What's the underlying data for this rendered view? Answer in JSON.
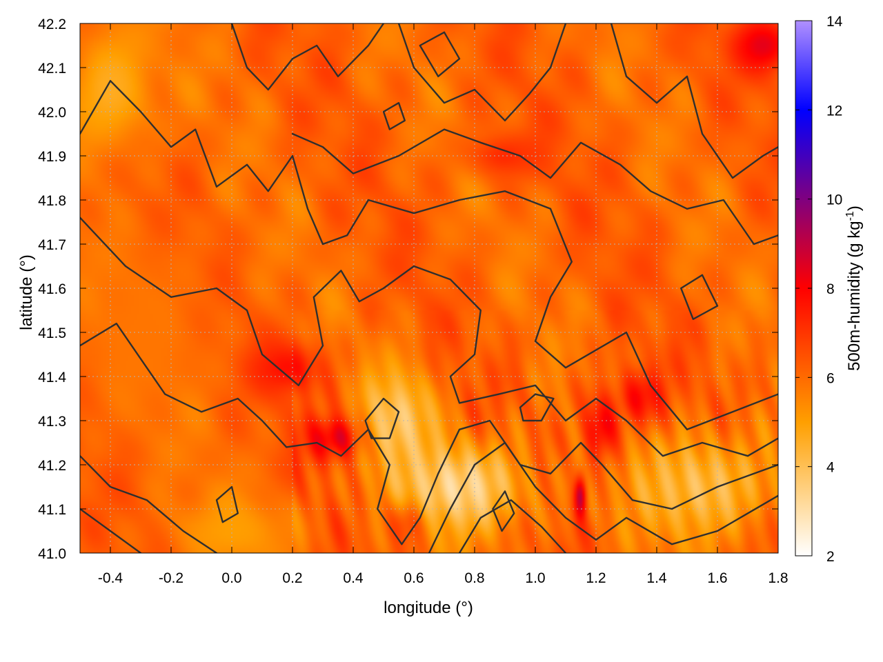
{
  "chart_data": {
    "type": "heatmap",
    "title": "",
    "xlabel": "longitude (°)",
    "ylabel": "latitude (°)",
    "colorbar_label": "500m-humidity (g kg⁻¹)",
    "colorbar_label_parts": {
      "base": "500m-humidity (g kg",
      "exp": "-1",
      "close": ")"
    },
    "xlim": [
      -0.5,
      1.8
    ],
    "ylim": [
      41.0,
      42.2
    ],
    "clim": [
      2,
      14
    ],
    "x_ticks": [
      "-0.4",
      "-0.2",
      "0.0",
      "0.2",
      "0.4",
      "0.6",
      "0.8",
      "1.0",
      "1.2",
      "1.4",
      "1.6",
      "1.8"
    ],
    "x_tick_values": [
      -0.4,
      -0.2,
      0.0,
      0.2,
      0.4,
      0.6,
      0.8,
      1.0,
      1.2,
      1.4,
      1.6,
      1.8
    ],
    "y_ticks": [
      "41.0",
      "41.1",
      "41.2",
      "41.3",
      "41.4",
      "41.5",
      "41.6",
      "41.7",
      "41.8",
      "41.9",
      "42.0",
      "42.1",
      "42.2"
    ],
    "y_tick_values": [
      41.0,
      41.1,
      41.2,
      41.3,
      41.4,
      41.5,
      41.6,
      41.7,
      41.8,
      41.9,
      42.0,
      42.1,
      42.2
    ],
    "colorbar_ticks": [
      "2",
      "4",
      "6",
      "8",
      "10",
      "12",
      "14"
    ],
    "colorbar_tick_values": [
      2,
      4,
      6,
      8,
      10,
      12,
      14
    ],
    "colormap": [
      "#ffffff",
      "#ffd080",
      "#ff9f00",
      "#ff5000",
      "#ff0000",
      "#0000ff",
      "#b090ff"
    ],
    "colormap_stops": [
      2,
      3.5,
      5,
      6.5,
      8,
      12,
      14
    ],
    "grid": true,
    "field_features": [
      {
        "lon": 0.35,
        "lat": 41.26,
        "value": 8.6,
        "sx": 0.1,
        "sy": 0.05
      },
      {
        "lon": 0.18,
        "lat": 41.42,
        "value": 7.8,
        "sx": 0.12,
        "sy": 0.06
      },
      {
        "lon": 1.22,
        "lat": 41.28,
        "value": 8.4,
        "sx": 0.06,
        "sy": 0.08
      },
      {
        "lon": 1.35,
        "lat": 41.35,
        "value": 8.0,
        "sx": 0.08,
        "sy": 0.06
      },
      {
        "lon": 1.15,
        "lat": 41.13,
        "value": 9.5,
        "sx": 0.02,
        "sy": 0.05
      },
      {
        "lon": 0.58,
        "lat": 41.08,
        "value": 8.2,
        "sx": 0.06,
        "sy": 0.05
      },
      {
        "lon": 1.75,
        "lat": 42.15,
        "value": 8.4,
        "sx": 0.1,
        "sy": 0.06
      },
      {
        "lon": 0.9,
        "lat": 41.9,
        "value": 7.2,
        "sx": 0.12,
        "sy": 0.05
      },
      {
        "lon": 0.75,
        "lat": 41.15,
        "value": 3.4,
        "sx": 0.22,
        "sy": 0.1
      },
      {
        "lon": 0.55,
        "lat": 41.3,
        "value": 3.8,
        "sx": 0.12,
        "sy": 0.12
      },
      {
        "lon": 1.55,
        "lat": 41.15,
        "value": 4.2,
        "sx": 0.25,
        "sy": 0.12
      },
      {
        "lon": -0.4,
        "lat": 42.05,
        "value": 4.6,
        "sx": 0.15,
        "sy": 0.15
      },
      {
        "lon": 0.0,
        "lat": 41.05,
        "value": 5.0,
        "sx": 0.2,
        "sy": 0.08
      },
      {
        "lon": -0.3,
        "lat": 41.5,
        "value": 5.8,
        "sx": 0.25,
        "sy": 0.25
      }
    ],
    "contours": [
      [
        [
          -0.5,
          41.95
        ],
        [
          -0.4,
          42.07
        ],
        [
          -0.3,
          42.0
        ],
        [
          -0.2,
          41.92
        ],
        [
          -0.12,
          41.96
        ],
        [
          -0.05,
          41.83
        ],
        [
          0.05,
          41.88
        ],
        [
          0.12,
          41.82
        ],
        [
          0.2,
          41.9
        ],
        [
          0.25,
          41.78
        ],
        [
          0.3,
          41.7
        ],
        [
          0.38,
          41.72
        ],
        [
          0.45,
          41.8
        ],
        [
          0.6,
          41.77
        ],
        [
          0.75,
          41.8
        ],
        [
          0.9,
          41.82
        ],
        [
          1.05,
          41.78
        ],
        [
          1.12,
          41.66
        ],
        [
          1.05,
          41.58
        ],
        [
          1.0,
          41.48
        ],
        [
          1.1,
          41.42
        ],
        [
          1.3,
          41.5
        ],
        [
          1.38,
          41.38
        ],
        [
          1.5,
          41.28
        ],
        [
          1.65,
          41.32
        ],
        [
          1.8,
          41.36
        ]
      ],
      [
        [
          -0.5,
          41.76
        ],
        [
          -0.35,
          41.65
        ],
        [
          -0.2,
          41.58
        ],
        [
          -0.05,
          41.6
        ],
        [
          0.05,
          41.55
        ],
        [
          0.1,
          41.45
        ],
        [
          0.22,
          41.38
        ],
        [
          0.3,
          41.47
        ],
        [
          0.27,
          41.58
        ],
        [
          0.36,
          41.64
        ],
        [
          0.42,
          41.57
        ],
        [
          0.5,
          41.6
        ],
        [
          0.6,
          41.65
        ],
        [
          0.72,
          41.62
        ],
        [
          0.82,
          41.55
        ],
        [
          0.8,
          41.45
        ],
        [
          0.72,
          41.4
        ],
        [
          0.75,
          41.34
        ],
        [
          0.88,
          41.36
        ],
        [
          1.0,
          41.38
        ],
        [
          1.1,
          41.3
        ],
        [
          1.2,
          41.35
        ],
        [
          1.3,
          41.3
        ],
        [
          1.42,
          41.22
        ],
        [
          1.55,
          41.25
        ],
        [
          1.7,
          41.22
        ],
        [
          1.8,
          41.26
        ]
      ],
      [
        [
          -0.5,
          41.47
        ],
        [
          -0.38,
          41.52
        ],
        [
          -0.3,
          41.44
        ],
        [
          -0.22,
          41.36
        ],
        [
          -0.1,
          41.32
        ],
        [
          0.02,
          41.35
        ],
        [
          0.1,
          41.3
        ],
        [
          0.18,
          41.24
        ],
        [
          0.28,
          41.25
        ],
        [
          0.36,
          41.22
        ],
        [
          0.45,
          41.28
        ],
        [
          0.52,
          41.2
        ],
        [
          0.48,
          41.1
        ],
        [
          0.56,
          41.02
        ],
        [
          0.62,
          41.08
        ],
        [
          0.68,
          41.18
        ],
        [
          0.75,
          41.28
        ],
        [
          0.85,
          41.3
        ],
        [
          0.95,
          41.2
        ],
        [
          1.05,
          41.18
        ],
        [
          1.15,
          41.25
        ],
        [
          1.22,
          41.2
        ],
        [
          1.32,
          41.12
        ],
        [
          1.45,
          41.1
        ],
        [
          1.6,
          41.15
        ],
        [
          1.8,
          41.2
        ]
      ],
      [
        [
          -0.5,
          41.22
        ],
        [
          -0.4,
          41.15
        ],
        [
          -0.28,
          41.12
        ],
        [
          -0.16,
          41.05
        ],
        [
          -0.05,
          41.0
        ]
      ],
      [
        [
          -0.5,
          41.1
        ],
        [
          -0.4,
          41.05
        ],
        [
          -0.3,
          41.0
        ]
      ],
      [
        [
          0.65,
          41.0
        ],
        [
          0.72,
          41.1
        ],
        [
          0.8,
          41.2
        ],
        [
          0.9,
          41.25
        ],
        [
          1.0,
          41.15
        ],
        [
          1.1,
          41.08
        ],
        [
          1.2,
          41.03
        ],
        [
          1.3,
          41.08
        ],
        [
          1.45,
          41.02
        ],
        [
          1.6,
          41.05
        ],
        [
          1.8,
          41.13
        ]
      ],
      [
        [
          0.75,
          41.0
        ],
        [
          0.82,
          41.08
        ],
        [
          0.92,
          41.12
        ],
        [
          1.02,
          41.06
        ],
        [
          1.1,
          41.0
        ]
      ],
      [
        [
          0.0,
          42.2
        ],
        [
          0.05,
          42.1
        ],
        [
          0.12,
          42.05
        ],
        [
          0.2,
          42.12
        ],
        [
          0.28,
          42.15
        ],
        [
          0.35,
          42.08
        ],
        [
          0.45,
          42.15
        ],
        [
          0.5,
          42.2
        ]
      ],
      [
        [
          0.55,
          42.2
        ],
        [
          0.6,
          42.1
        ],
        [
          0.7,
          42.02
        ],
        [
          0.8,
          42.05
        ],
        [
          0.9,
          41.98
        ],
        [
          0.98,
          42.04
        ],
        [
          1.05,
          42.1
        ],
        [
          1.1,
          42.2
        ]
      ],
      [
        [
          1.25,
          42.2
        ],
        [
          1.3,
          42.08
        ],
        [
          1.4,
          42.02
        ],
        [
          1.5,
          42.08
        ],
        [
          1.55,
          41.95
        ],
        [
          1.65,
          41.85
        ],
        [
          1.75,
          41.9
        ],
        [
          1.8,
          41.92
        ]
      ],
      [
        [
          0.2,
          41.95
        ],
        [
          0.3,
          41.92
        ],
        [
          0.4,
          41.86
        ],
        [
          0.55,
          41.9
        ],
        [
          0.7,
          41.96
        ],
        [
          0.82,
          41.93
        ],
        [
          0.95,
          41.9
        ],
        [
          1.05,
          41.85
        ],
        [
          1.15,
          41.93
        ],
        [
          1.28,
          41.88
        ],
        [
          1.38,
          41.82
        ],
        [
          1.5,
          41.78
        ],
        [
          1.62,
          41.8
        ],
        [
          1.72,
          41.7
        ],
        [
          1.8,
          41.72
        ]
      ]
    ],
    "closed_contours": [
      [
        [
          0.44,
          41.3
        ],
        [
          0.5,
          41.35
        ],
        [
          0.55,
          41.32
        ],
        [
          0.52,
          41.26
        ],
        [
          0.46,
          41.26
        ]
      ],
      [
        [
          0.95,
          41.33
        ],
        [
          1.0,
          41.36
        ],
        [
          1.06,
          41.35
        ],
        [
          1.02,
          41.3
        ],
        [
          0.96,
          41.3
        ]
      ],
      [
        [
          0.86,
          41.1
        ],
        [
          0.9,
          41.14
        ],
        [
          0.93,
          41.09
        ],
        [
          0.89,
          41.05
        ]
      ],
      [
        [
          -0.05,
          41.12
        ],
        [
          0.0,
          41.15
        ],
        [
          0.02,
          41.09
        ],
        [
          -0.03,
          41.07
        ]
      ],
      [
        [
          0.62,
          42.15
        ],
        [
          0.7,
          42.18
        ],
        [
          0.75,
          42.12
        ],
        [
          0.68,
          42.08
        ]
      ],
      [
        [
          0.5,
          42.0
        ],
        [
          0.55,
          42.02
        ],
        [
          0.57,
          41.98
        ],
        [
          0.52,
          41.96
        ]
      ],
      [
        [
          1.48,
          41.6
        ],
        [
          1.55,
          41.63
        ],
        [
          1.6,
          41.56
        ],
        [
          1.52,
          41.53
        ]
      ]
    ]
  }
}
